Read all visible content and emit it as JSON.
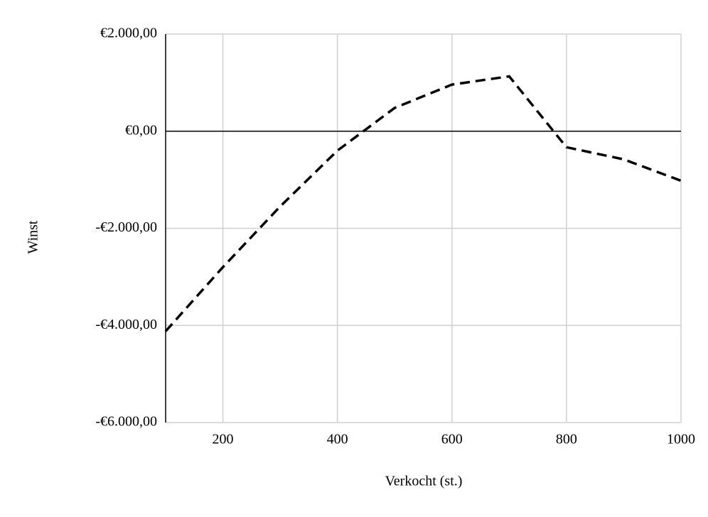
{
  "chart_data": {
    "type": "line",
    "x_label": "Verkocht (st.)",
    "y_label": "Winst",
    "x": [
      100,
      200,
      300,
      400,
      500,
      600,
      700,
      800,
      900,
      1000
    ],
    "values": [
      -4120,
      -2800,
      -1550,
      -400,
      480,
      960,
      1130,
      -330,
      -580,
      -1020
    ],
    "color": "#000000",
    "line_style": "dashed",
    "xlim": [
      100,
      1000
    ],
    "xticks": [
      200,
      400,
      600,
      800,
      1000
    ],
    "ylim": [
      -6000,
      2000
    ],
    "yticks": [
      {
        "value": -6000,
        "label": "-€6.000,00"
      },
      {
        "value": -4000,
        "label": "-€4.000,00"
      },
      {
        "value": -2000,
        "label": "-€2.000,00"
      },
      {
        "value": 0,
        "label": "€0,00"
      },
      {
        "value": 2000,
        "label": "€2.000,00"
      }
    ],
    "grid": true
  }
}
